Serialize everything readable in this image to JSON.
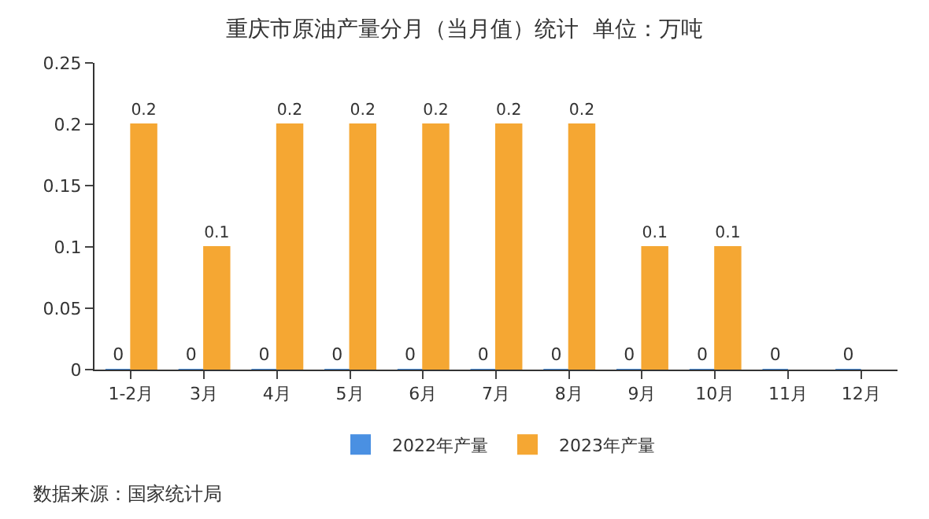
{
  "chart_data": {
    "type": "bar",
    "title": "重庆市原油产量分月（当月值）统计  单位：万吨",
    "categories": [
      "1-2月",
      "3月",
      "4月",
      "5月",
      "6月",
      "7月",
      "8月",
      "9月",
      "10月",
      "11月",
      "12月"
    ],
    "series": [
      {
        "name": "2022年产量",
        "color": "#4a90e2",
        "values": [
          0,
          0,
          0,
          0,
          0,
          0,
          0,
          0,
          0,
          0,
          0
        ]
      },
      {
        "name": "2023年产量",
        "color": "#f5a733",
        "values": [
          0.2,
          0.1,
          0.2,
          0.2,
          0.2,
          0.2,
          0.2,
          0.1,
          0.1,
          null,
          null
        ]
      }
    ],
    "ylim": [
      0,
      0.25
    ],
    "yticks": [
      0,
      0.05,
      0.1,
      0.15,
      0.2,
      0.25
    ],
    "data_labels": true,
    "legend": "bottom",
    "annotations": [
      "数据来源：国家统计局"
    ]
  }
}
